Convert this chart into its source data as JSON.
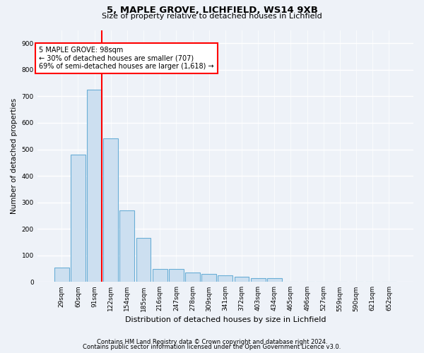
{
  "title1": "5, MAPLE GROVE, LICHFIELD, WS14 9XB",
  "title2": "Size of property relative to detached houses in Lichfield",
  "xlabel": "Distribution of detached houses by size in Lichfield",
  "ylabel": "Number of detached properties",
  "footnote1": "Contains HM Land Registry data © Crown copyright and database right 2024.",
  "footnote2": "Contains public sector information licensed under the Open Government Licence v3.0.",
  "categories": [
    "29sqm",
    "60sqm",
    "91sqm",
    "122sqm",
    "154sqm",
    "185sqm",
    "216sqm",
    "247sqm",
    "278sqm",
    "309sqm",
    "341sqm",
    "372sqm",
    "403sqm",
    "434sqm",
    "465sqm",
    "496sqm",
    "527sqm",
    "559sqm",
    "590sqm",
    "621sqm",
    "652sqm"
  ],
  "values": [
    55,
    480,
    725,
    540,
    270,
    165,
    50,
    50,
    35,
    30,
    25,
    20,
    15,
    15,
    0,
    0,
    0,
    0,
    0,
    0,
    0
  ],
  "bar_color": "#ccdff0",
  "bar_edge_color": "#6aaed6",
  "vline_x_idx": 2,
  "vline_color": "red",
  "annotation_text": "5 MAPLE GROVE: 98sqm\n← 30% of detached houses are smaller (707)\n69% of semi-detached houses are larger (1,618) →",
  "annotation_box_color": "white",
  "annotation_box_edge_color": "red",
  "ylim": [
    0,
    950
  ],
  "yticks": [
    0,
    100,
    200,
    300,
    400,
    500,
    600,
    700,
    800,
    900
  ],
  "bg_color": "#eef2f8",
  "grid_color": "white",
  "title1_fontsize": 9.5,
  "title2_fontsize": 8,
  "ylabel_fontsize": 7.5,
  "xlabel_fontsize": 8,
  "tick_fontsize": 6.5,
  "annotation_fontsize": 7,
  "footnote_fontsize": 6
}
